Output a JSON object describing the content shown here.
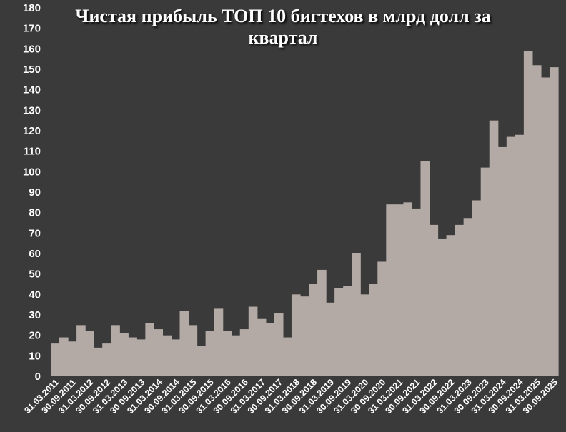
{
  "chart_data": {
    "type": "area",
    "title": "Чистая прибыль ТОП 10 бигтехов в млрд долл за квартал",
    "ylim": [
      0,
      180
    ],
    "yticks": [
      0,
      10,
      20,
      30,
      40,
      50,
      60,
      70,
      80,
      90,
      100,
      110,
      120,
      130,
      140,
      150,
      160,
      170,
      180
    ],
    "grid": false,
    "legend": "none",
    "colors": {
      "background": "#3a3a3a",
      "fill": "#b3aaa6",
      "text": "#ffffff"
    },
    "xtick_labels": [
      "31.03.2011",
      "30.09.2011",
      "31.03.2012",
      "30.09.2012",
      "31.03.2013",
      "30.09.2013",
      "31.03.2014",
      "30.09.2014",
      "31.03.2015",
      "30.09.2015",
      "31.03.2016",
      "30.09.2016",
      "31.03.2017",
      "30.09.2017",
      "31.03.2018",
      "30.09.2018",
      "31.03.2019",
      "30.09.2019",
      "31.03.2020",
      "30.09.2020",
      "31.03.2021",
      "30.09.2021",
      "31.03.2022",
      "30.09.2022",
      "31.03.2023",
      "30.09.2023",
      "31.03.2024",
      "30.09.2024",
      "31.03.2025",
      "30.09.2025"
    ],
    "x": [
      "31.03.2011",
      "30.06.2011",
      "30.09.2011",
      "31.12.2011",
      "31.03.2012",
      "30.06.2012",
      "30.09.2012",
      "31.12.2012",
      "31.03.2013",
      "30.06.2013",
      "30.09.2013",
      "31.12.2013",
      "31.03.2014",
      "30.06.2014",
      "30.09.2014",
      "31.12.2014",
      "31.03.2015",
      "30.06.2015",
      "30.09.2015",
      "31.12.2015",
      "31.03.2016",
      "30.06.2016",
      "30.09.2016",
      "31.12.2016",
      "31.03.2017",
      "30.06.2017",
      "30.09.2017",
      "31.12.2017",
      "31.03.2018",
      "30.06.2018",
      "30.09.2018",
      "31.12.2018",
      "31.03.2019",
      "30.06.2019",
      "30.09.2019",
      "31.12.2019",
      "31.03.2020",
      "30.06.2020",
      "30.09.2020",
      "31.12.2020",
      "31.03.2021",
      "30.06.2021",
      "30.09.2021",
      "31.12.2021",
      "31.03.2022",
      "30.06.2022",
      "30.09.2022",
      "31.12.2022",
      "31.03.2023",
      "30.06.2023",
      "30.09.2023",
      "31.12.2023",
      "31.03.2024",
      "30.06.2024",
      "30.09.2024",
      "31.12.2024",
      "31.03.2025",
      "30.06.2025",
      "30.09.2025"
    ],
    "values": [
      16,
      19,
      17,
      25,
      22,
      14,
      16,
      25,
      21,
      19,
      18,
      26,
      23,
      20,
      18,
      32,
      25,
      15,
      22,
      33,
      22,
      20,
      23,
      34,
      28,
      26,
      31,
      19,
      40,
      39,
      45,
      52,
      36,
      43,
      44,
      60,
      40,
      45,
      56,
      84,
      84,
      85,
      82,
      105,
      74,
      67,
      69,
      74,
      77,
      86,
      102,
      125,
      112,
      117,
      118,
      159,
      152,
      146,
      151
    ]
  }
}
